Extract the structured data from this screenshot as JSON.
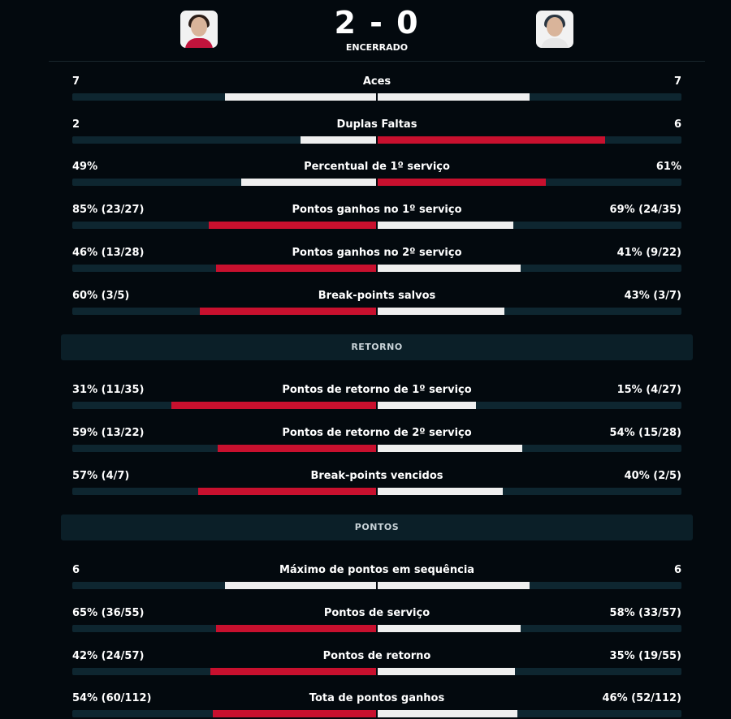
{
  "header": {
    "score": "2 - 0",
    "status": "ENCERRADO"
  },
  "sections": [
    {
      "stats": [
        {
          "label": "Aces",
          "left": "7",
          "right": "7",
          "left_value": 7,
          "right_value": 7
        },
        {
          "label": "Duplas Faltas",
          "left": "2",
          "right": "6",
          "left_value": 2,
          "right_value": 6
        },
        {
          "label": "Percentual de 1º serviço",
          "left": "49%",
          "right": "61%",
          "left_value": 49,
          "right_value": 61
        },
        {
          "label": "Pontos ganhos no 1º serviço",
          "left": "85% (23/27)",
          "right": "69% (24/35)",
          "left_value": 85,
          "right_value": 69
        },
        {
          "label": "Pontos ganhos no 2º serviço",
          "left": "46% (13/28)",
          "right": "41% (9/22)",
          "left_value": 46,
          "right_value": 41
        },
        {
          "label": "Break-points salvos",
          "left": "60% (3/5)",
          "right": "43% (3/7)",
          "left_value": 60,
          "right_value": 43
        }
      ]
    },
    {
      "title": "RETORNO",
      "stats": [
        {
          "label": "Pontos de retorno de 1º serviço",
          "left": "31% (11/35)",
          "right": "15% (4/27)",
          "left_value": 31,
          "right_value": 15
        },
        {
          "label": "Pontos de retorno de 2º serviço",
          "left": "59% (13/22)",
          "right": "54% (15/28)",
          "left_value": 59,
          "right_value": 54
        },
        {
          "label": "Break-points vencidos",
          "left": "57% (4/7)",
          "right": "40% (2/5)",
          "left_value": 57,
          "right_value": 40
        }
      ]
    },
    {
      "title": "PONTOS",
      "stats": [
        {
          "label": "Máximo de pontos em sequência",
          "left": "6",
          "right": "6",
          "left_value": 6,
          "right_value": 6
        },
        {
          "label": "Pontos de serviço",
          "left": "65% (36/55)",
          "right": "58% (33/57)",
          "left_value": 65,
          "right_value": 58
        },
        {
          "label": "Pontos de retorno",
          "left": "42% (24/57)",
          "right": "35% (19/55)",
          "left_value": 42,
          "right_value": 35
        },
        {
          "label": "Tota de pontos ganhos",
          "left": "54% (60/112)",
          "right": "46% (52/112)",
          "left_value": 54,
          "right_value": 46
        }
      ]
    }
  ]
}
